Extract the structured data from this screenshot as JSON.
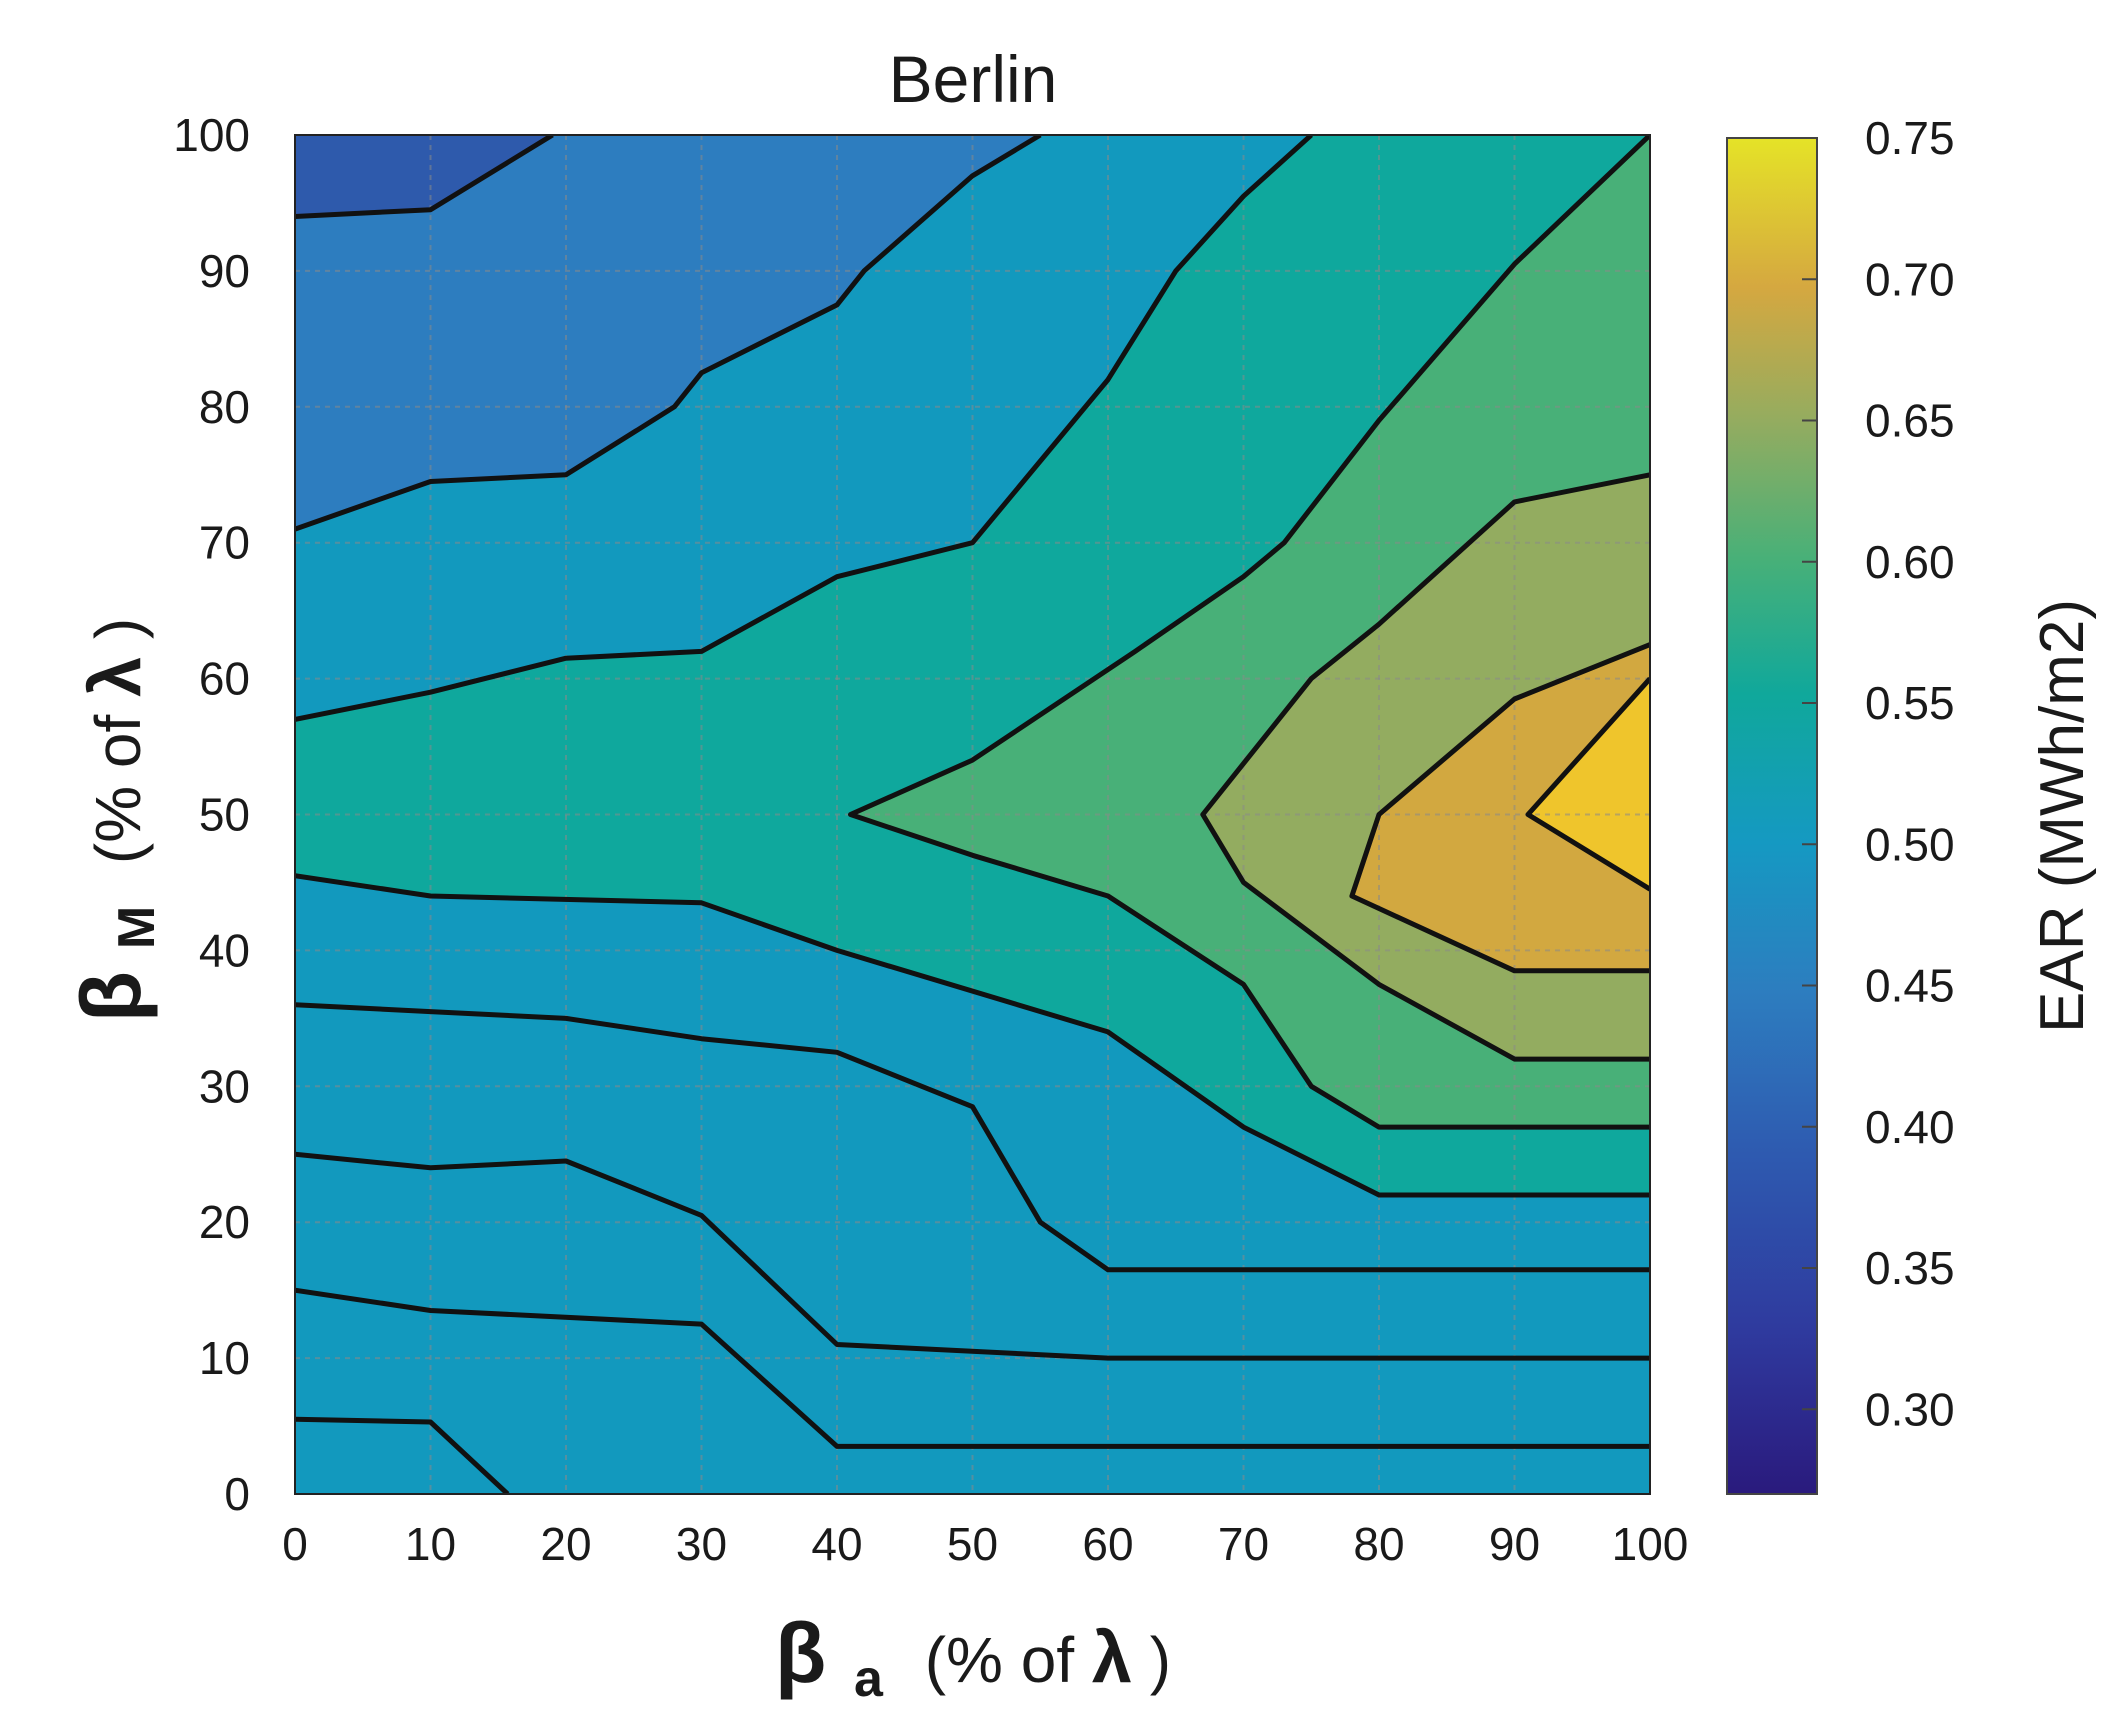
{
  "chart_data": {
    "type": "contour",
    "title": "Berlin",
    "xlabel": {
      "symbol": "β",
      "subscript": "a",
      "unit_prefix": "(% of ",
      "unit_symbol": "λ",
      "unit_suffix": ")"
    },
    "ylabel": {
      "symbol": "β",
      "subscript": "M",
      "unit_prefix": "(% of ",
      "unit_symbol": "λ",
      "unit_suffix": ")"
    },
    "xlim": [
      0,
      100
    ],
    "ylim": [
      0,
      100
    ],
    "xticks": [
      "0",
      "10",
      "20",
      "30",
      "40",
      "50",
      "60",
      "70",
      "80",
      "90",
      "100"
    ],
    "yticks": [
      "0",
      "10",
      "20",
      "30",
      "40",
      "50",
      "60",
      "70",
      "80",
      "90",
      "100"
    ],
    "grid": true,
    "colorbar": {
      "label": "EAR (MWh/m2)",
      "range": [
        0.27,
        0.75
      ],
      "ticks": [
        "0.30",
        "0.35",
        "0.40",
        "0.45",
        "0.50",
        "0.55",
        "0.60",
        "0.65",
        "0.70",
        "0.75"
      ],
      "tick_values": [
        0.3,
        0.35,
        0.4,
        0.45,
        0.5,
        0.55,
        0.6,
        0.65,
        0.7,
        0.75
      ],
      "colormap": "parula"
    },
    "levels": [
      0.3,
      0.35,
      0.4,
      0.45,
      0.5,
      0.55,
      0.6,
      0.65,
      0.7
    ],
    "region_colors": [
      "#2b1e86",
      "#2f389c",
      "#2e5aac",
      "#2d7dbf",
      "#1299be",
      "#0fa89d",
      "#48b078",
      "#93ac60",
      "#d2a840",
      "#efc52c"
    ],
    "contours": [
      {
        "level": 0.3,
        "points": [
          [
            0,
            5.5
          ],
          [
            10,
            5.3
          ],
          [
            15.7,
            0
          ]
        ]
      },
      {
        "level": 0.35,
        "points": [
          [
            0,
            15
          ],
          [
            10,
            13.5
          ],
          [
            30,
            12.5
          ],
          [
            40,
            3.5
          ],
          [
            100,
            3.5
          ]
        ]
      },
      {
        "level": 0.4,
        "points": [
          [
            0,
            25
          ],
          [
            10,
            24
          ],
          [
            20,
            24.5
          ],
          [
            30,
            20.5
          ],
          [
            40,
            11
          ],
          [
            60,
            10
          ],
          [
            100,
            10
          ]
        ]
      },
      {
        "level": 0.45,
        "points": [
          [
            0,
            36
          ],
          [
            10,
            35.5
          ],
          [
            20,
            35
          ],
          [
            30,
            33.5
          ],
          [
            40,
            32.5
          ],
          [
            50,
            28.5
          ],
          [
            55,
            20
          ],
          [
            60,
            16.5
          ],
          [
            100,
            16.5
          ]
        ]
      },
      {
        "level": 0.5,
        "points": [
          [
            0,
            94
          ],
          [
            10,
            94.5
          ],
          [
            19,
            100
          ]
        ]
      },
      {
        "level": 0.5,
        "points": [
          [
            0,
            45.5
          ],
          [
            10,
            44
          ],
          [
            30,
            43.5
          ],
          [
            40,
            40
          ],
          [
            60,
            34
          ],
          [
            70,
            27
          ],
          [
            80,
            22
          ],
          [
            100,
            22
          ]
        ]
      },
      {
        "level": 0.55,
        "points": [
          [
            0,
            71
          ],
          [
            10,
            74.5
          ],
          [
            20,
            75
          ],
          [
            28,
            80
          ],
          [
            30,
            82.5
          ],
          [
            40,
            87.5
          ],
          [
            42,
            90
          ],
          [
            50,
            97
          ],
          [
            55,
            100
          ]
        ]
      },
      {
        "level": 0.55,
        "points": [
          [
            0,
            57
          ],
          [
            10,
            59
          ],
          [
            20,
            61.5
          ],
          [
            30,
            62
          ],
          [
            40,
            67.5
          ],
          [
            50,
            70
          ],
          [
            60,
            82
          ],
          [
            65,
            90
          ],
          [
            70,
            95.5
          ],
          [
            75,
            100
          ]
        ]
      },
      {
        "level": 0.6,
        "points": [
          [
            100,
            27
          ],
          [
            80,
            27
          ],
          [
            75,
            30
          ],
          [
            70,
            37.5
          ],
          [
            60,
            44
          ],
          [
            50,
            47
          ],
          [
            41,
            50
          ],
          [
            50,
            54
          ],
          [
            62,
            62
          ],
          [
            70,
            67.5
          ],
          [
            73,
            70
          ],
          [
            80,
            79
          ],
          [
            90,
            90.5
          ],
          [
            100,
            100
          ]
        ]
      },
      {
        "level": 0.65,
        "points": [
          [
            100,
            32
          ],
          [
            90,
            32
          ],
          [
            80,
            37.5
          ],
          [
            70,
            45
          ],
          [
            67,
            50
          ],
          [
            75,
            60
          ],
          [
            80,
            64
          ],
          [
            90,
            73
          ],
          [
            100,
            75
          ]
        ]
      },
      {
        "level": 0.7,
        "points": [
          [
            100,
            38.5
          ],
          [
            90,
            38.5
          ],
          [
            78,
            44
          ],
          [
            80,
            50
          ],
          [
            90,
            58.5
          ],
          [
            100,
            62.5
          ]
        ]
      },
      {
        "level": 0.7,
        "points": [
          [
            100,
            44.5
          ],
          [
            91,
            50
          ],
          [
            100,
            60
          ]
        ]
      }
    ]
  }
}
